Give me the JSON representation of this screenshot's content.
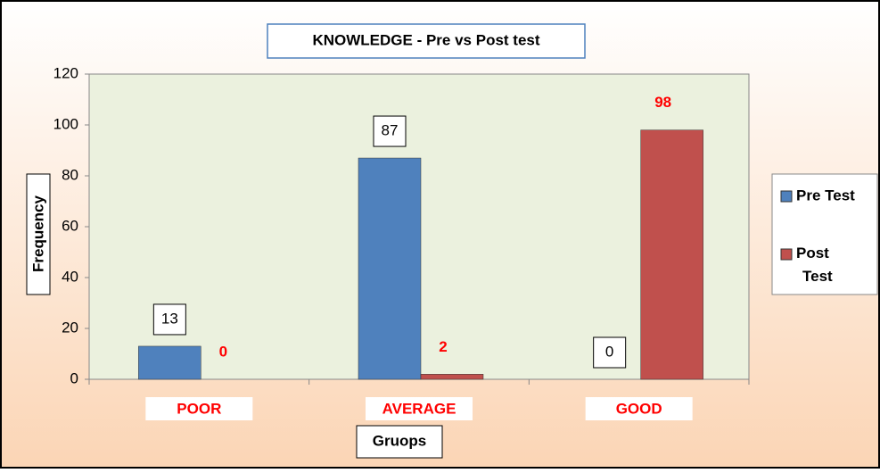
{
  "chart_data": {
    "type": "bar",
    "title": "KNOWLEDGE  - Pre vs Post test",
    "y_label": "Frequency",
    "x_label": "Gruops",
    "categories": [
      "POOR",
      "AVERAGE",
      "GOOD"
    ],
    "series": [
      {
        "name": "Pre Test",
        "color": "#4f81bd",
        "values": [
          13,
          87,
          0
        ]
      },
      {
        "name": "Post Test",
        "color": "#c0504d",
        "values": [
          0,
          2,
          98
        ]
      }
    ],
    "ylim": [
      0,
      120
    ],
    "yticks": [
      0,
      20,
      40,
      60,
      80,
      100,
      120
    ],
    "legend": "right"
  }
}
